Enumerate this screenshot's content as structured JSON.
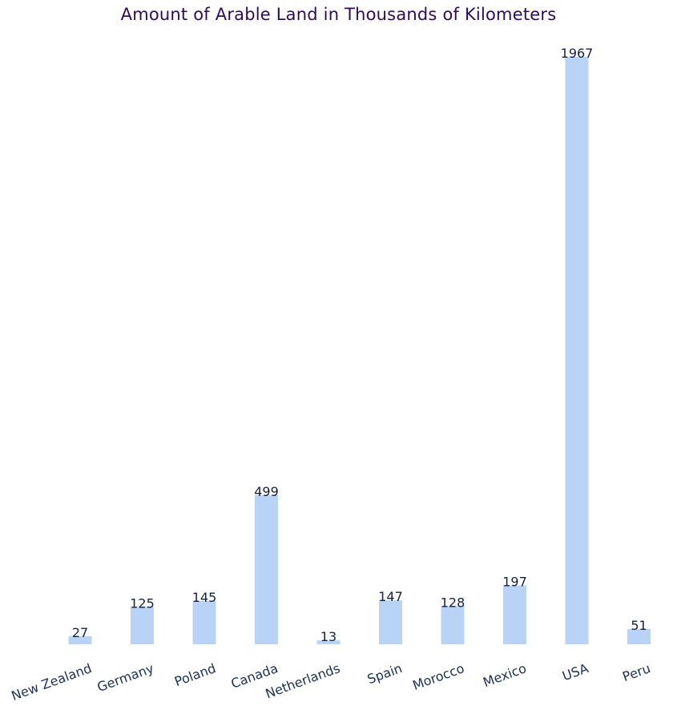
{
  "chart_data": {
    "type": "bar",
    "title": "Amount of Arable Land in Thousands of Kilometers",
    "categories": [
      "New Zealand",
      "Germany",
      "Poland",
      "Canada",
      "Netherlands",
      "Spain",
      "Morocco",
      "Mexico",
      "USA",
      "Peru"
    ],
    "values": [
      27,
      125,
      145,
      499,
      13,
      147,
      128,
      197,
      1967,
      51
    ],
    "xlabel": "",
    "ylabel": "",
    "ylim": [
      0,
      1967
    ],
    "grid": false,
    "bar_color": "#b9d3f7",
    "label_color": "#14213d",
    "title_color": "#2e0a5c"
  }
}
